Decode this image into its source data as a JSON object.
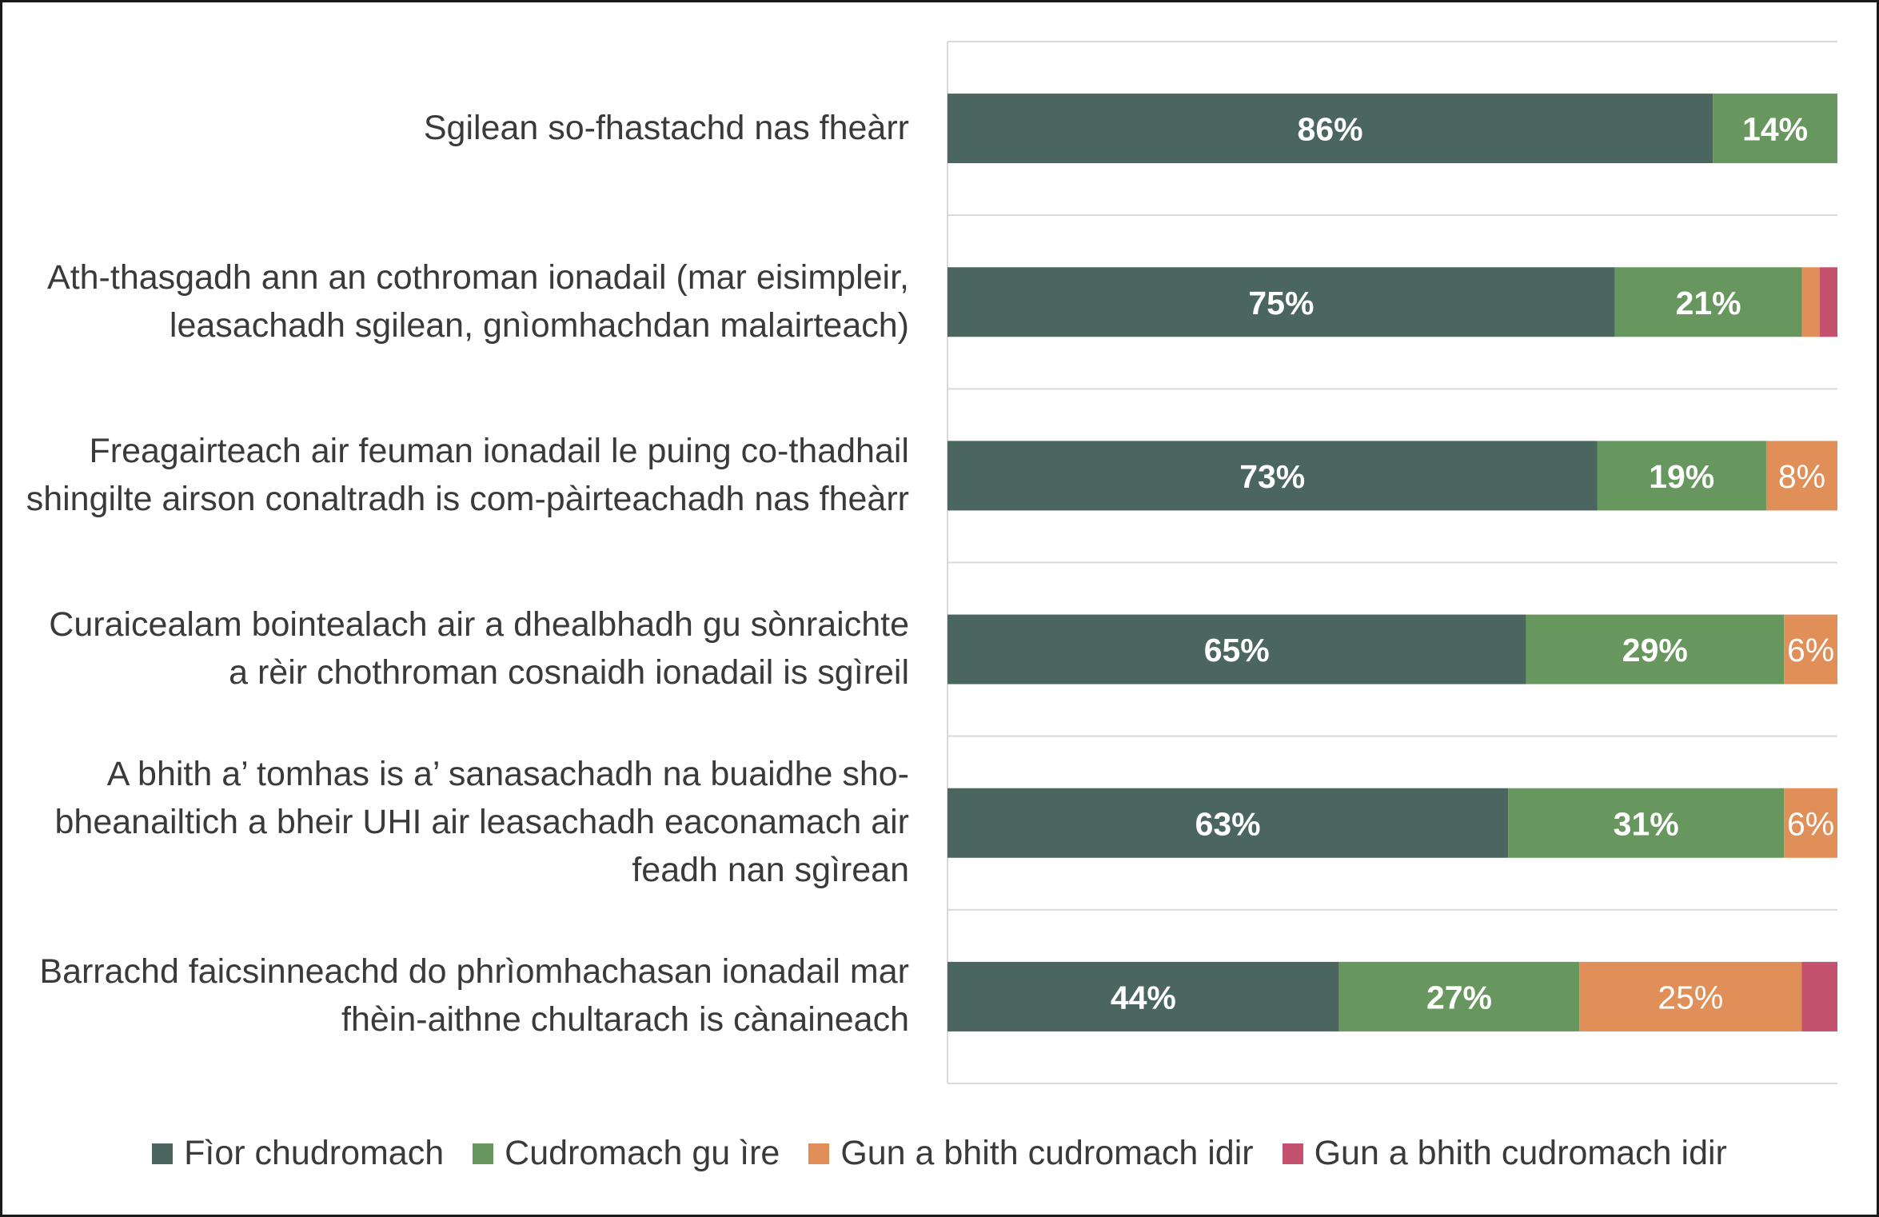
{
  "chart_data": {
    "type": "bar",
    "orientation": "horizontal",
    "stacked": true,
    "categories": [
      "Sgilean so-fhastachd nas fheàrr",
      "Ath-thasgadh ann an cothroman ionadail (mar eisimpleir, leasachadh sgilean, gnìomhachdan malairteach)",
      "Freagairteach air feuman ionadail le puing co-thadhail shingilte airson conaltradh is com-pàirteachadh nas fheàrr",
      "Curaicealam bointealach air a dhealbhadh gu sònraichte a rèir chothroman cosnaidh ionadail is sgìreil",
      "A bhith a’ tomhas is a’ sanasachadh na buaidhe sho-bheanailtich a bheir UHI air leasachadh eaconamach air feadh nan sgìrean",
      "Barrachd faicsinneachd do phrìomhachasan ionadail mar fhèin-aithne chultarach is cànaineach"
    ],
    "series": [
      {
        "name": "Fìor chudromach",
        "color": "#4a665e",
        "values": [
          86,
          75,
          73,
          65,
          63,
          44
        ],
        "labels": [
          "86%",
          "75%",
          "73%",
          "65%",
          "63%",
          "44%"
        ],
        "label_color": "#ffffff",
        "label_bold": true
      },
      {
        "name": "Cudromach gu ìre",
        "color": "#67965e",
        "values": [
          14,
          21,
          19,
          29,
          31,
          27
        ],
        "labels": [
          "14%",
          "21%",
          "19%",
          "29%",
          "31%",
          "27%"
        ],
        "label_color": "#ffffff",
        "label_bold": true
      },
      {
        "name": "Gun a bhith cudromach idir",
        "color": "#e08f58",
        "values": [
          0,
          2,
          8,
          6,
          6,
          25
        ],
        "labels": [
          "",
          "",
          "8%",
          "6%",
          "6%",
          "25%"
        ],
        "label_color": "#ffffff",
        "label_bold": false
      },
      {
        "name": "Gun a bhith cudromach idir",
        "color": "#c4526e",
        "values": [
          0,
          2,
          0,
          0,
          0,
          4
        ],
        "labels": [
          "",
          "",
          "",
          "",
          "",
          ""
        ],
        "label_color": "#ffffff",
        "label_bold": false
      }
    ],
    "xlim": [
      0,
      100
    ],
    "legend_position": "bottom",
    "grid": "horizontal separators between categories",
    "title": "",
    "xlabel": "",
    "ylabel": ""
  }
}
